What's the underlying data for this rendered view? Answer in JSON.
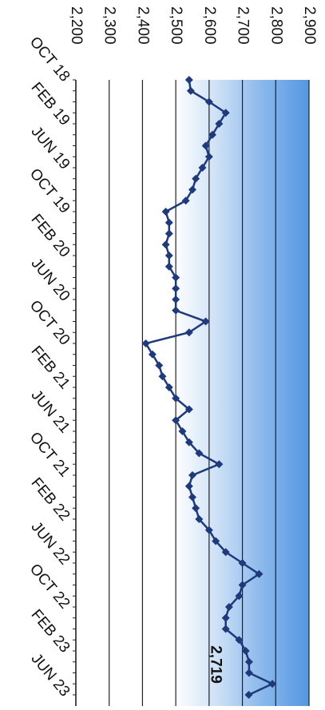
{
  "chart_data": {
    "type": "line",
    "categories": [
      "OCT 18",
      null,
      null,
      null,
      "FEB 19",
      null,
      null,
      null,
      "JUN 19",
      null,
      null,
      null,
      "OCT 19",
      null,
      null,
      null,
      "FEB 20",
      null,
      null,
      null,
      "JUN 20",
      null,
      null,
      null,
      "OCT 20",
      null,
      null,
      null,
      "FEB 21",
      null,
      null,
      null,
      "JUN 21",
      null,
      null,
      null,
      "OCT 21",
      null,
      null,
      null,
      "FEB 22",
      null,
      null,
      null,
      "JUN 22",
      null,
      null,
      null,
      "OCT 22",
      null,
      null,
      null,
      "FEB 23",
      null,
      null,
      null,
      "JUN 23"
    ],
    "series": [
      {
        "color": "#1f3a7a",
        "values": [
          2540,
          2545,
          2600,
          2650,
          2630,
          2610,
          2590,
          2600,
          2580,
          2560,
          2550,
          2530,
          2470,
          2480,
          2480,
          2470,
          2480,
          2480,
          2500,
          2500,
          2500,
          2500,
          2590,
          2540,
          2410,
          2430,
          2450,
          2460,
          2480,
          2500,
          2540,
          2500,
          2520,
          2540,
          2570,
          2630,
          2550,
          2540,
          2550,
          2560,
          2570,
          2600,
          2620,
          2650,
          2700,
          2750,
          2700,
          2690,
          2660,
          2650,
          2650,
          2690,
          2710,
          2720,
          2720,
          2790,
          2719
        ],
        "value_labels": [
          null,
          null,
          null,
          null,
          null,
          null,
          null,
          null,
          null,
          null,
          null,
          null,
          null,
          null,
          null,
          null,
          null,
          null,
          null,
          null,
          null,
          null,
          null,
          null,
          null,
          null,
          null,
          null,
          null,
          null,
          null,
          null,
          null,
          null,
          null,
          null,
          null,
          null,
          null,
          null,
          null,
          null,
          null,
          null,
          null,
          null,
          null,
          null,
          null,
          null,
          null,
          null,
          null,
          null,
          null,
          null,
          "2,719"
        ]
      }
    ],
    "ylim": [
      2200,
      2900
    ],
    "yticks": [
      {
        "value": 2200,
        "label": "2,200"
      },
      {
        "value": 2300,
        "label": "2,300"
      },
      {
        "value": 2400,
        "label": "2,400"
      },
      {
        "value": 2500,
        "label": "2,500"
      },
      {
        "value": 2600,
        "label": "2,600"
      },
      {
        "value": 2700,
        "label": "2,700"
      },
      {
        "value": 2800,
        "label": "2,800"
      },
      {
        "value": 2900,
        "label": "2,900"
      }
    ],
    "grid": true
  }
}
